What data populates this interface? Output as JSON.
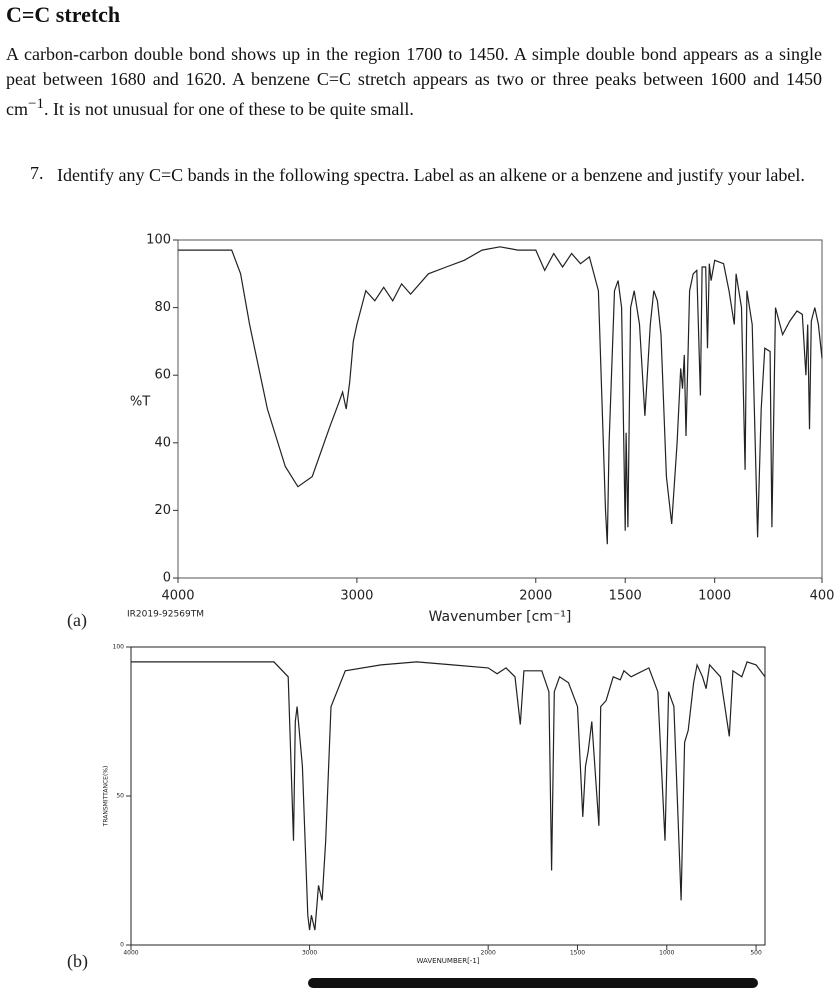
{
  "heading": "C=C stretch",
  "paragraph": [
    "A carbon-carbon double bond shows up in the region 1700 to 1450. A simple double bond appears as a single peat between 1680 and 1620. A benzene C=C stretch appears as two or three peaks between 1600 and 1450 cm",
    "−1",
    ". It is not unusual for one of these to be quite small."
  ],
  "question": {
    "number": "7.",
    "text": "Identify any C=C bands in the following spectra. Label as an alkene or a benzene and justify your label."
  },
  "chart_data": [
    {
      "type": "line",
      "panel_label": "(a)",
      "note": "IR2019-92569TM",
      "x_label": "Wavenumber [cm⁻¹]",
      "y_label": "%T",
      "color": "#222222",
      "xlim": [
        4000,
        400
      ],
      "ylim": [
        0,
        100
      ],
      "xticks": [
        4000,
        3000,
        2000,
        1500,
        1000,
        400
      ],
      "yticks": [
        0,
        20,
        40,
        60,
        80,
        100
      ],
      "x": [
        4000,
        3700,
        3650,
        3600,
        3500,
        3400,
        3330,
        3250,
        3150,
        3100,
        3080,
        3060,
        3040,
        3020,
        3000,
        2950,
        2900,
        2850,
        2800,
        2750,
        2700,
        2600,
        2500,
        2400,
        2300,
        2200,
        2100,
        2000,
        1950,
        1900,
        1850,
        1800,
        1750,
        1700,
        1650,
        1610,
        1600,
        1590,
        1560,
        1540,
        1520,
        1500,
        1495,
        1485,
        1470,
        1450,
        1420,
        1390,
        1360,
        1340,
        1320,
        1300,
        1270,
        1240,
        1210,
        1190,
        1180,
        1170,
        1160,
        1140,
        1120,
        1100,
        1080,
        1070,
        1050,
        1040,
        1030,
        1020,
        1000,
        950,
        920,
        890,
        880,
        850,
        830,
        820,
        790,
        760,
        740,
        720,
        690,
        680,
        660,
        620,
        580,
        540,
        510,
        490,
        480,
        470,
        460,
        440,
        420,
        400
      ],
      "values": [
        97,
        97,
        90,
        75,
        50,
        33,
        27,
        30,
        45,
        52,
        55,
        50,
        58,
        70,
        75,
        85,
        82,
        86,
        82,
        87,
        84,
        90,
        92,
        94,
        97,
        98,
        97,
        97,
        91,
        96,
        92,
        96,
        93,
        95,
        85,
        20,
        10,
        40,
        85,
        88,
        80,
        14,
        43,
        15,
        80,
        85,
        75,
        48,
        75,
        85,
        82,
        72,
        30,
        16,
        40,
        62,
        56,
        66,
        42,
        85,
        90,
        91,
        54,
        92,
        92,
        68,
        93,
        88,
        94,
        93,
        85,
        75,
        90,
        80,
        32,
        85,
        75,
        12,
        50,
        68,
        67,
        15,
        80,
        72,
        76,
        79,
        78,
        60,
        75,
        44,
        76,
        80,
        75,
        65
      ]
    },
    {
      "type": "line",
      "panel_label": "(b)",
      "x_label": "WAVENUMBER[-1]",
      "y_label": "TRANSMITTANCE(%)",
      "color": "#222222",
      "xlim": [
        4000,
        450
      ],
      "ylim": [
        0,
        100
      ],
      "xticks": [
        4000,
        3000,
        2000,
        1500,
        1000,
        500
      ],
      "yticks": [
        0,
        50,
        100
      ],
      "x": [
        4000,
        3600,
        3200,
        3120,
        3090,
        3080,
        3070,
        3040,
        3010,
        3000,
        2990,
        2970,
        2950,
        2930,
        2910,
        2880,
        2800,
        2600,
        2400,
        2200,
        2000,
        1950,
        1900,
        1850,
        1820,
        1800,
        1700,
        1660,
        1645,
        1630,
        1600,
        1550,
        1500,
        1470,
        1455,
        1440,
        1420,
        1380,
        1370,
        1340,
        1300,
        1260,
        1240,
        1200,
        1100,
        1050,
        1010,
        990,
        960,
        920,
        900,
        880,
        850,
        830,
        800,
        780,
        760,
        700,
        650,
        630,
        580,
        550,
        500,
        450
      ],
      "values": [
        95,
        95,
        95,
        90,
        35,
        75,
        80,
        60,
        10,
        5,
        10,
        5,
        20,
        15,
        35,
        80,
        92,
        94,
        95,
        94,
        93,
        91,
        93,
        90,
        74,
        92,
        92,
        85,
        25,
        85,
        90,
        88,
        80,
        43,
        60,
        65,
        75,
        40,
        80,
        82,
        90,
        89,
        92,
        90,
        93,
        85,
        35,
        85,
        80,
        15,
        68,
        72,
        88,
        94,
        90,
        86,
        94,
        90,
        70,
        92,
        90,
        95,
        94,
        90
      ]
    }
  ]
}
